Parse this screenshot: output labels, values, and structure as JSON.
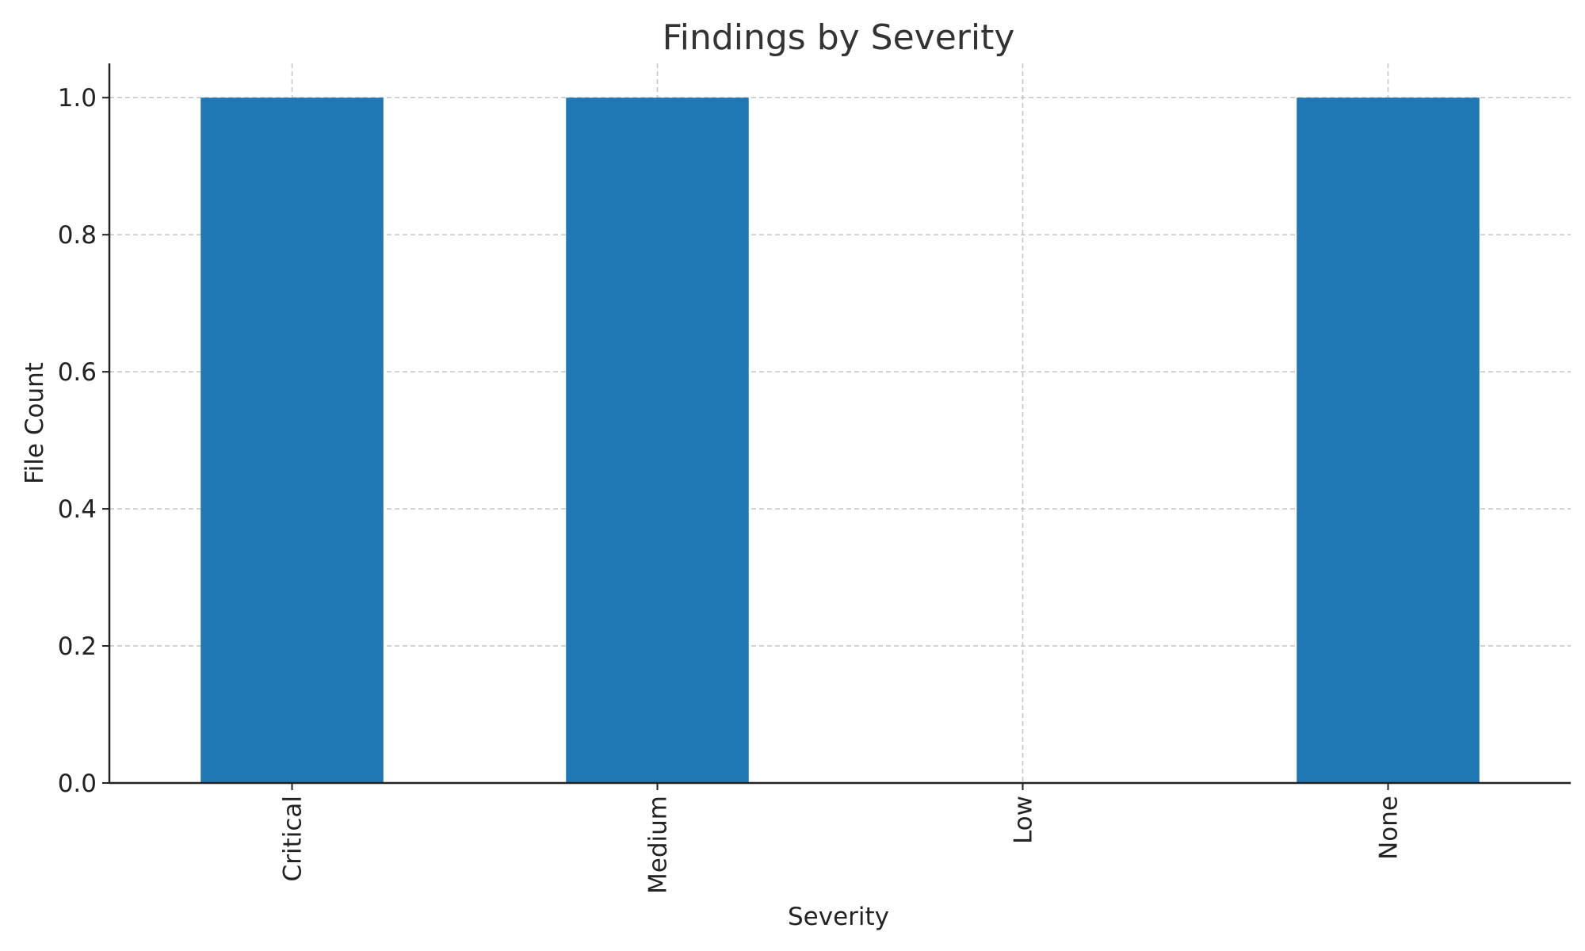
{
  "chart_data": {
    "type": "bar",
    "title": "Findings by Severity",
    "xlabel": "Severity",
    "ylabel": "File Count",
    "categories": [
      "Critical",
      "Medium",
      "Low",
      "None"
    ],
    "values": [
      1,
      1,
      0,
      1
    ],
    "ylim": [
      0,
      1.05
    ],
    "yticks": [
      0.0,
      0.2,
      0.4,
      0.6,
      0.8,
      1.0
    ],
    "ytick_labels": [
      "0.0",
      "0.2",
      "0.4",
      "0.6",
      "0.8",
      "1.0"
    ],
    "grid": true,
    "bar_color": "#1f77b4"
  }
}
